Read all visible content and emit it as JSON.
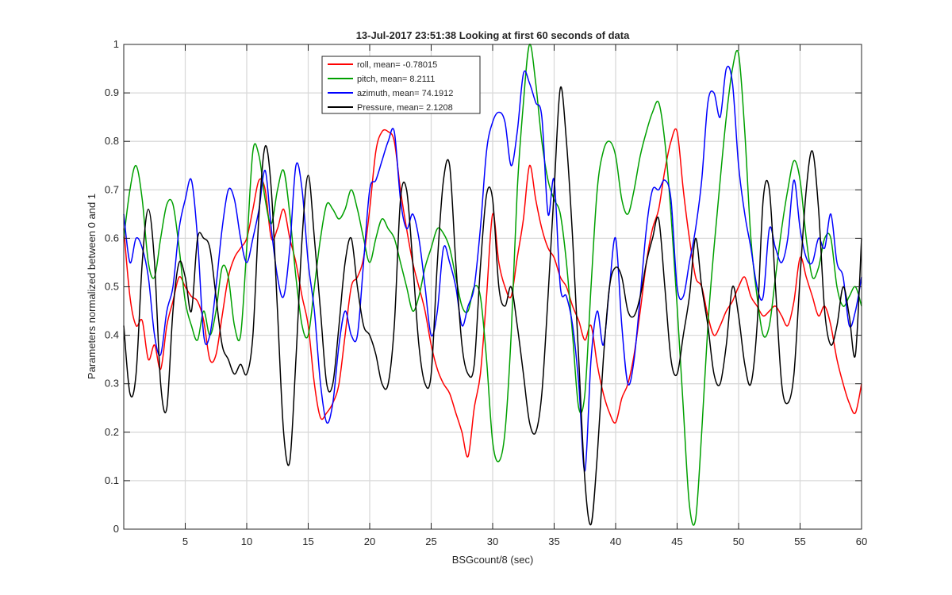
{
  "chart_data": {
    "type": "line",
    "title": "13-Jul-2017 23:51:38 Looking at first 60 seconds of data",
    "xlabel": "BSGcount/8 (sec)",
    "ylabel": "Parameters normalized between 0 and 1",
    "xlim": [
      0,
      60
    ],
    "ylim": [
      0,
      1
    ],
    "xticks": [
      5,
      10,
      15,
      20,
      25,
      30,
      35,
      40,
      45,
      50,
      55,
      60
    ],
    "yticks": [
      0,
      0.1,
      0.2,
      0.3,
      0.4,
      0.5,
      0.6,
      0.7,
      0.8,
      0.9,
      1
    ],
    "xtick_labels": [
      "5",
      "10",
      "15",
      "20",
      "25",
      "30",
      "35",
      "40",
      "45",
      "50",
      "55",
      "60"
    ],
    "ytick_labels": [
      "0",
      "0.1",
      "0.2",
      "0.3",
      "0.4",
      "0.5",
      "0.6",
      "0.7",
      "0.8",
      "0.9",
      "1"
    ],
    "grid": true,
    "legend_position": "top-center",
    "series": [
      {
        "name": "roll, mean= -0.78015",
        "color": "#ff0000",
        "x": [
          0,
          0.5,
          1,
          1.5,
          2,
          2.5,
          3,
          3.5,
          4,
          4.5,
          5,
          5.5,
          6,
          6.5,
          7,
          7.5,
          8,
          8.5,
          9,
          9.5,
          10,
          10.5,
          11,
          11.5,
          12,
          12.5,
          13,
          13.5,
          14,
          14.5,
          15,
          15.5,
          16,
          16.5,
          17,
          17.5,
          18,
          18.5,
          19,
          19.5,
          20,
          20.5,
          21,
          21.5,
          22,
          22.5,
          23,
          23.5,
          24,
          24.5,
          25,
          25.5,
          26,
          26.5,
          27,
          27.5,
          28,
          28.5,
          29,
          29.5,
          30,
          30.5,
          31,
          31.5,
          32,
          32.5,
          33,
          33.5,
          34,
          34.5,
          35,
          35.5,
          36,
          36.5,
          37,
          37.5,
          38,
          38.5,
          39,
          39.5,
          40,
          40.5,
          41,
          41.5,
          42,
          42.5,
          43,
          43.5,
          44,
          44.5,
          45,
          45.5,
          46,
          46.5,
          47,
          47.5,
          48,
          48.5,
          49,
          49.5,
          50,
          50.5,
          51,
          51.5,
          52,
          52.5,
          53,
          53.5,
          54,
          54.5,
          55,
          55.5,
          56,
          56.5,
          57,
          57.5,
          58,
          58.5,
          59,
          59.5,
          60
        ],
        "values": [
          0.62,
          0.48,
          0.42,
          0.43,
          0.35,
          0.38,
          0.33,
          0.42,
          0.47,
          0.52,
          0.5,
          0.48,
          0.47,
          0.43,
          0.35,
          0.36,
          0.44,
          0.52,
          0.56,
          0.58,
          0.6,
          0.66,
          0.72,
          0.7,
          0.6,
          0.62,
          0.66,
          0.6,
          0.55,
          0.48,
          0.42,
          0.3,
          0.23,
          0.24,
          0.26,
          0.3,
          0.4,
          0.5,
          0.52,
          0.56,
          0.66,
          0.78,
          0.82,
          0.82,
          0.8,
          0.7,
          0.62,
          0.55,
          0.5,
          0.45,
          0.38,
          0.33,
          0.3,
          0.28,
          0.24,
          0.2,
          0.15,
          0.25,
          0.32,
          0.48,
          0.65,
          0.55,
          0.5,
          0.48,
          0.56,
          0.64,
          0.75,
          0.68,
          0.62,
          0.58,
          0.56,
          0.52,
          0.5,
          0.46,
          0.43,
          0.39,
          0.42,
          0.34,
          0.28,
          0.24,
          0.22,
          0.27,
          0.3,
          0.36,
          0.45,
          0.55,
          0.62,
          0.66,
          0.74,
          0.8,
          0.82,
          0.7,
          0.6,
          0.52,
          0.5,
          0.44,
          0.4,
          0.42,
          0.45,
          0.47,
          0.5,
          0.52,
          0.48,
          0.46,
          0.44,
          0.45,
          0.46,
          0.44,
          0.42,
          0.47,
          0.56,
          0.52,
          0.48,
          0.44,
          0.46,
          0.42,
          0.35,
          0.3,
          0.26,
          0.24,
          0.3
        ]
      },
      {
        "name": "pitch, mean= 8.2111",
        "color": "#00a000",
        "x": [
          0,
          0.5,
          1,
          1.5,
          2,
          2.5,
          3,
          3.5,
          4,
          4.5,
          5,
          5.5,
          6,
          6.5,
          7,
          7.5,
          8,
          8.5,
          9,
          9.5,
          10,
          10.5,
          11,
          11.5,
          12,
          12.5,
          13,
          13.5,
          14,
          14.5,
          15,
          15.5,
          16,
          16.5,
          17,
          17.5,
          18,
          18.5,
          19,
          19.5,
          20,
          20.5,
          21,
          21.5,
          22,
          22.5,
          23,
          23.5,
          24,
          24.5,
          25,
          25.5,
          26,
          26.5,
          27,
          27.5,
          28,
          28.5,
          29,
          29.5,
          30,
          30.5,
          31,
          31.5,
          32,
          32.5,
          33,
          33.5,
          34,
          34.5,
          35,
          35.5,
          36,
          36.5,
          37,
          37.5,
          38,
          38.5,
          39,
          39.5,
          40,
          40.5,
          41,
          41.5,
          42,
          42.5,
          43,
          43.5,
          44,
          44.5,
          45,
          45.5,
          46,
          46.5,
          47,
          47.5,
          48,
          48.5,
          49,
          49.5,
          50,
          50.5,
          51,
          51.5,
          52,
          52.5,
          53,
          53.5,
          54,
          54.5,
          55,
          55.5,
          56,
          56.5,
          57,
          57.5,
          58,
          58.5,
          59,
          59.5,
          60
        ],
        "values": [
          0.6,
          0.7,
          0.75,
          0.68,
          0.55,
          0.52,
          0.6,
          0.67,
          0.67,
          0.58,
          0.47,
          0.42,
          0.39,
          0.45,
          0.4,
          0.45,
          0.54,
          0.52,
          0.42,
          0.4,
          0.58,
          0.78,
          0.77,
          0.68,
          0.63,
          0.7,
          0.74,
          0.65,
          0.52,
          0.42,
          0.4,
          0.5,
          0.6,
          0.67,
          0.66,
          0.64,
          0.66,
          0.7,
          0.66,
          0.6,
          0.55,
          0.6,
          0.64,
          0.62,
          0.6,
          0.55,
          0.5,
          0.45,
          0.48,
          0.54,
          0.58,
          0.62,
          0.61,
          0.58,
          0.52,
          0.46,
          0.45,
          0.5,
          0.48,
          0.35,
          0.18,
          0.14,
          0.2,
          0.4,
          0.7,
          0.88,
          1.0,
          0.92,
          0.8,
          0.72,
          0.68,
          0.65,
          0.55,
          0.4,
          0.25,
          0.28,
          0.5,
          0.7,
          0.78,
          0.8,
          0.77,
          0.68,
          0.65,
          0.7,
          0.77,
          0.82,
          0.86,
          0.88,
          0.8,
          0.65,
          0.46,
          0.25,
          0.05,
          0.02,
          0.2,
          0.42,
          0.58,
          0.72,
          0.85,
          0.95,
          0.98,
          0.82,
          0.6,
          0.48,
          0.4,
          0.42,
          0.52,
          0.62,
          0.7,
          0.76,
          0.72,
          0.6,
          0.52,
          0.54,
          0.6,
          0.6,
          0.5,
          0.46,
          0.48,
          0.5,
          0.46
        ]
      },
      {
        "name": "azimuth, mean= 74.1912",
        "color": "#0000ff",
        "x": [
          0,
          0.5,
          1,
          1.5,
          2,
          2.5,
          3,
          3.5,
          4,
          4.5,
          5,
          5.5,
          6,
          6.5,
          7,
          7.5,
          8,
          8.5,
          9,
          9.5,
          10,
          10.5,
          11,
          11.5,
          12,
          12.5,
          13,
          13.5,
          14,
          14.5,
          15,
          15.5,
          16,
          16.5,
          17,
          17.5,
          18,
          18.5,
          19,
          19.5,
          20,
          20.5,
          21,
          21.5,
          22,
          22.5,
          23,
          23.5,
          24,
          24.5,
          25,
          25.5,
          26,
          26.5,
          27,
          27.5,
          28,
          28.5,
          29,
          29.5,
          30,
          30.5,
          31,
          31.5,
          32,
          32.5,
          33,
          33.5,
          34,
          34.5,
          35,
          35.5,
          36,
          36.5,
          37,
          37.5,
          38,
          38.5,
          39,
          39.5,
          40,
          40.5,
          41,
          41.5,
          42,
          42.5,
          43,
          43.5,
          44,
          44.5,
          45,
          45.5,
          46,
          46.5,
          47,
          47.5,
          48,
          48.5,
          49,
          49.5,
          50,
          50.5,
          51,
          51.5,
          52,
          52.5,
          53,
          53.5,
          54,
          54.5,
          55,
          55.5,
          56,
          56.5,
          57,
          57.5,
          58,
          58.5,
          59,
          59.5,
          60
        ],
        "values": [
          0.65,
          0.55,
          0.6,
          0.58,
          0.52,
          0.4,
          0.36,
          0.45,
          0.5,
          0.62,
          0.68,
          0.72,
          0.6,
          0.4,
          0.4,
          0.5,
          0.62,
          0.7,
          0.68,
          0.6,
          0.55,
          0.6,
          0.66,
          0.74,
          0.62,
          0.52,
          0.48,
          0.58,
          0.75,
          0.7,
          0.55,
          0.45,
          0.3,
          0.22,
          0.26,
          0.38,
          0.45,
          0.4,
          0.4,
          0.55,
          0.7,
          0.72,
          0.76,
          0.8,
          0.82,
          0.68,
          0.62,
          0.65,
          0.6,
          0.5,
          0.4,
          0.45,
          0.58,
          0.55,
          0.5,
          0.42,
          0.46,
          0.5,
          0.62,
          0.78,
          0.84,
          0.86,
          0.84,
          0.75,
          0.82,
          0.94,
          0.92,
          0.88,
          0.85,
          0.65,
          0.72,
          0.5,
          0.48,
          0.42,
          0.3,
          0.12,
          0.35,
          0.45,
          0.38,
          0.5,
          0.6,
          0.42,
          0.3,
          0.35,
          0.48,
          0.62,
          0.7,
          0.7,
          0.72,
          0.68,
          0.5,
          0.48,
          0.55,
          0.62,
          0.72,
          0.88,
          0.9,
          0.85,
          0.95,
          0.92,
          0.75,
          0.65,
          0.58,
          0.5,
          0.48,
          0.62,
          0.58,
          0.55,
          0.6,
          0.72,
          0.62,
          0.56,
          0.55,
          0.6,
          0.58,
          0.65,
          0.55,
          0.52,
          0.42,
          0.45,
          0.52
        ]
      },
      {
        "name": "Pressure, mean= 2.1208",
        "color": "#000000",
        "x": [
          0,
          0.5,
          1,
          1.5,
          2,
          2.5,
          3,
          3.5,
          4,
          4.5,
          5,
          5.5,
          6,
          6.5,
          7,
          7.5,
          8,
          8.5,
          9,
          9.5,
          10,
          10.5,
          11,
          11.5,
          12,
          12.5,
          13,
          13.5,
          14,
          14.5,
          15,
          15.5,
          16,
          16.5,
          17,
          17.5,
          18,
          18.5,
          19,
          19.5,
          20,
          20.5,
          21,
          21.5,
          22,
          22.5,
          23,
          23.5,
          24,
          24.5,
          25,
          25.5,
          26,
          26.5,
          27,
          27.5,
          28,
          28.5,
          29,
          29.5,
          30,
          30.5,
          31,
          31.5,
          32,
          32.5,
          33,
          33.5,
          34,
          34.5,
          35,
          35.5,
          36,
          36.5,
          37,
          37.5,
          38,
          38.5,
          39,
          39.5,
          40,
          40.5,
          41,
          41.5,
          42,
          42.5,
          43,
          43.5,
          44,
          44.5,
          45,
          45.5,
          46,
          46.5,
          47,
          47.5,
          48,
          48.5,
          49,
          49.5,
          50,
          50.5,
          51,
          51.5,
          52,
          52.5,
          53,
          53.5,
          54,
          54.5,
          55,
          55.5,
          56,
          56.5,
          57,
          57.5,
          58,
          58.5,
          59,
          59.5,
          60
        ],
        "values": [
          0.42,
          0.28,
          0.32,
          0.55,
          0.66,
          0.55,
          0.3,
          0.25,
          0.45,
          0.55,
          0.52,
          0.45,
          0.6,
          0.6,
          0.58,
          0.48,
          0.38,
          0.35,
          0.32,
          0.34,
          0.32,
          0.4,
          0.65,
          0.79,
          0.7,
          0.45,
          0.2,
          0.14,
          0.35,
          0.6,
          0.73,
          0.6,
          0.45,
          0.3,
          0.3,
          0.42,
          0.55,
          0.6,
          0.5,
          0.42,
          0.4,
          0.36,
          0.3,
          0.3,
          0.42,
          0.68,
          0.7,
          0.55,
          0.38,
          0.3,
          0.32,
          0.55,
          0.72,
          0.75,
          0.55,
          0.38,
          0.32,
          0.34,
          0.54,
          0.69,
          0.68,
          0.5,
          0.46,
          0.5,
          0.42,
          0.32,
          0.22,
          0.2,
          0.28,
          0.48,
          0.7,
          0.91,
          0.8,
          0.6,
          0.35,
          0.1,
          0.01,
          0.15,
          0.35,
          0.5,
          0.54,
          0.52,
          0.45,
          0.44,
          0.48,
          0.55,
          0.6,
          0.64,
          0.5,
          0.35,
          0.32,
          0.4,
          0.48,
          0.6,
          0.5,
          0.42,
          0.32,
          0.3,
          0.38,
          0.5,
          0.44,
          0.34,
          0.3,
          0.42,
          0.68,
          0.7,
          0.5,
          0.3,
          0.26,
          0.32,
          0.52,
          0.7,
          0.78,
          0.66,
          0.45,
          0.38,
          0.42,
          0.5,
          0.44,
          0.36,
          0.6
        ]
      }
    ]
  }
}
